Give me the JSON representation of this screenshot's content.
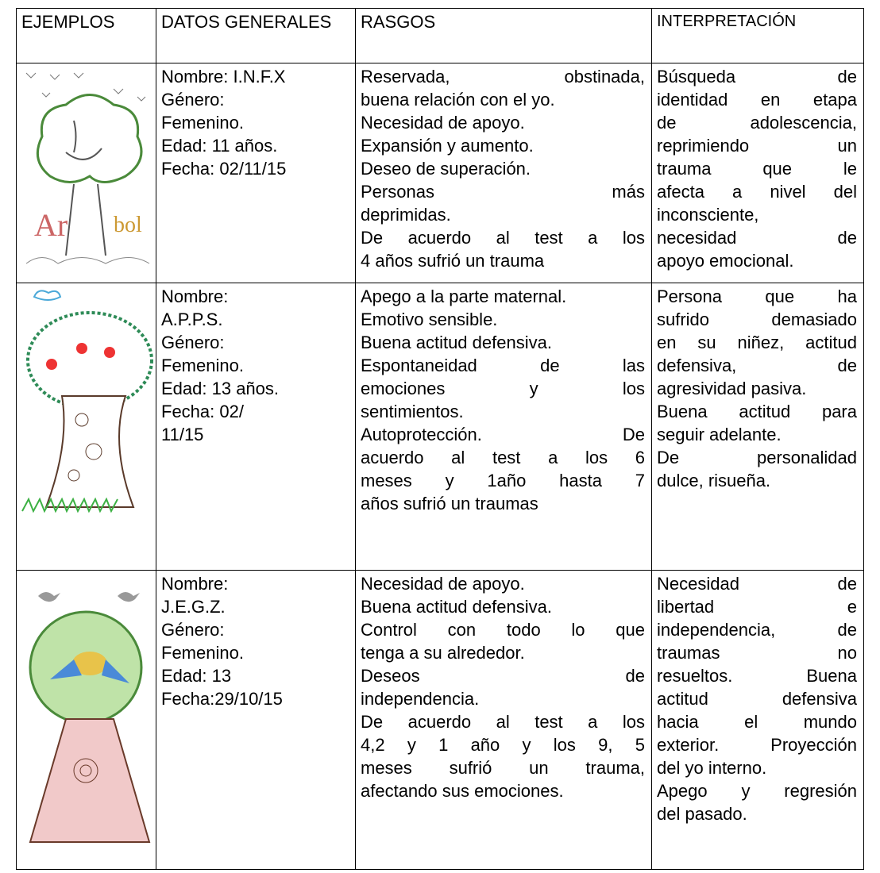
{
  "table": {
    "header": [
      "EJEMPLOS",
      "DATOS GENERALES",
      "RASGOS",
      "INTERPRETACIÓN"
    ],
    "rows": [
      {
        "datos": [
          "Nombre: I.N.F.X",
          "Género:",
          "Femenino.",
          "Edad: 11 años.",
          "Fecha: 02/11/15"
        ],
        "rasgos": [
          "Reservada, obstinada,",
          "buena relación con el yo.",
          "Necesidad de apoyo.",
          "Expansión y aumento.",
          "Deseo de superación.",
          "Personas más",
          "deprimidas.",
          "De acuerdo al test a los",
          "4 años sufrió un trauma"
        ],
        "interpretacion": [
          "Búsqueda de",
          "identidad en etapa",
          "de adolescencia,",
          "reprimiendo un",
          "trauma que le",
          "afecta a nivel del",
          "inconsciente,",
          "necesidad de",
          "apoyo emocional."
        ]
      },
      {
        "datos": [
          "Nombre:",
          "A.P.P.S.",
          "Género:",
          "Femenino.",
          "Edad: 13 años.",
          "Fecha: 02/",
          "11/15"
        ],
        "rasgos": [
          "Apego a la parte maternal.",
          "Emotivo sensible.",
          "Buena actitud defensiva.",
          "Espontaneidad de las",
          "emociones y los",
          "sentimientos.",
          "Autoprotección. De",
          "acuerdo al test a los 6",
          "meses y 1año hasta 7",
          "años sufrió un traumas"
        ],
        "interpretacion": [
          "Persona que ha",
          "sufrido demasiado",
          "en su niñez, actitud",
          "defensiva, de",
          "agresividad pasiva.",
          "Buena actitud para",
          "seguir adelante.",
          "De personalidad",
          "dulce, risueña."
        ]
      },
      {
        "datos": [
          "Nombre:",
          "J.E.G.Z.",
          "Género:",
          "Femenino.",
          "Edad: 13",
          "Fecha:29/10/15"
        ],
        "rasgos": [
          "Necesidad de apoyo.",
          "Buena actitud defensiva.",
          "Control con todo lo que",
          "tenga a su alrededor.",
          "Deseos de",
          "independencia.",
          "De acuerdo al test a los",
          "4,2 y 1 año y los 9, 5",
          "meses sufrió un trauma,",
          "afectando sus emociones."
        ],
        "interpretacion": [
          "Necesidad de",
          "libertad e",
          "independencia, de",
          "traumas no",
          "resueltos. Buena",
          "actitud defensiva",
          "hacia el mundo",
          "exterior. Proyección",
          "del yo interno.",
          "Apego y regresión",
          "del pasado."
        ]
      }
    ]
  }
}
